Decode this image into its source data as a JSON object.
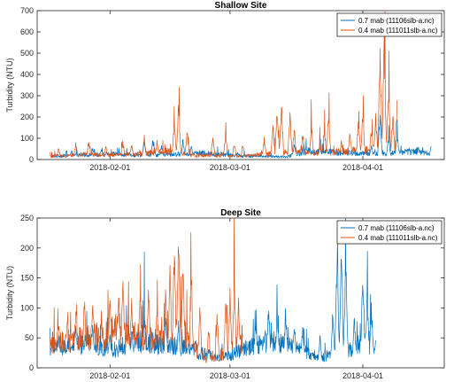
{
  "chart_data": [
    {
      "type": "line",
      "title": "Shallow Site",
      "xlabel": "",
      "ylabel": "Turbidity (NTU)",
      "x_range": [
        "2018-01-15",
        "2018-04-20"
      ],
      "ylim": [
        0,
        700
      ],
      "yticks": [
        0,
        100,
        200,
        300,
        400,
        500,
        600,
        700
      ],
      "xticks": [
        "2018-02-01",
        "2018-03-01",
        "2018-04-01"
      ],
      "grid": false,
      "legend_location": "top-right",
      "series": [
        {
          "name": "0.7 mab (11106slb-a.nc)",
          "color": "#0072BD",
          "start": "2018-01-18",
          "end": "2018-04-17",
          "baseline": [
            [
              0,
              15
            ],
            [
              8,
              22
            ],
            [
              15,
              25
            ],
            [
              20,
              20
            ],
            [
              30,
              25
            ],
            [
              35,
              30
            ],
            [
              45,
              18
            ],
            [
              55,
              12
            ],
            [
              60,
              40
            ],
            [
              70,
              30
            ],
            [
              78,
              25
            ],
            [
              85,
              40
            ],
            [
              90,
              20
            ]
          ],
          "spikes": [
            [
              5,
              50
            ],
            [
              10,
              60
            ],
            [
              12,
              55
            ],
            [
              22,
              110
            ],
            [
              24,
              100
            ],
            [
              26,
              80
            ],
            [
              31,
              105
            ],
            [
              33,
              70
            ],
            [
              40,
              40
            ],
            [
              57,
              85
            ],
            [
              63,
              70
            ],
            [
              66,
              60
            ],
            [
              75,
              80
            ],
            [
              77,
              235
            ],
            [
              79,
              120
            ],
            [
              81,
              140
            ],
            [
              83,
              60
            ],
            [
              86,
              65
            ],
            [
              89,
              90
            ]
          ]
        },
        {
          "name": "0.4 mab (111011slb-a.nc)",
          "color": "#D95319",
          "start": "2018-01-18",
          "end": "2018-04-09",
          "baseline": [
            [
              0,
              15
            ],
            [
              8,
              25
            ],
            [
              15,
              20
            ],
            [
              20,
              25
            ],
            [
              28,
              40
            ],
            [
              33,
              20
            ],
            [
              45,
              15
            ],
            [
              55,
              35
            ],
            [
              62,
              30
            ],
            [
              70,
              40
            ],
            [
              76,
              50
            ],
            [
              81,
              60
            ]
          ],
          "spikes": [
            [
              2,
              60
            ],
            [
              6,
              90
            ],
            [
              9,
              95
            ],
            [
              13,
              70
            ],
            [
              17,
              95
            ],
            [
              19,
              85
            ],
            [
              22,
              120
            ],
            [
              25,
              100
            ],
            [
              29,
              195
            ],
            [
              30,
              295
            ],
            [
              32,
              150
            ],
            [
              38,
              120
            ],
            [
              41,
              140
            ],
            [
              43,
              90
            ],
            [
              45,
              80
            ],
            [
              50,
              110
            ],
            [
              52,
              170
            ],
            [
              53,
              260
            ],
            [
              54,
              285
            ],
            [
              56,
              230
            ],
            [
              57,
              160
            ],
            [
              59,
              140
            ],
            [
              61,
              180
            ],
            [
              63,
              95
            ],
            [
              64,
              170
            ],
            [
              65,
              250
            ],
            [
              68,
              95
            ],
            [
              70,
              150
            ],
            [
              72,
              205
            ],
            [
              73,
              240
            ],
            [
              75,
              165
            ],
            [
              76,
              230
            ],
            [
              77,
              580
            ],
            [
              78,
              600
            ],
            [
              79,
              380
            ],
            [
              80,
              230
            ],
            [
              81,
              310
            ]
          ]
        }
      ]
    },
    {
      "type": "line",
      "title": "Deep Site",
      "xlabel": "",
      "ylabel": "Turbidity (NTU)",
      "x_range": [
        "2018-01-15",
        "2018-04-20"
      ],
      "ylim": [
        0,
        250
      ],
      "yticks": [
        0,
        50,
        100,
        150,
        200,
        250
      ],
      "xticks": [
        "2018-02-01",
        "2018-03-01",
        "2018-04-01"
      ],
      "grid": false,
      "legend_location": "top-right",
      "series": [
        {
          "name": "0.7 mab (11106slb-a.nc)",
          "color": "#0072BD",
          "start": "2018-01-18",
          "end": "2018-04-04",
          "baseline": [
            [
              0,
              30
            ],
            [
              5,
              35
            ],
            [
              10,
              40
            ],
            [
              15,
              30
            ],
            [
              20,
              45
            ],
            [
              25,
              40
            ],
            [
              30,
              35
            ],
            [
              35,
              25
            ],
            [
              40,
              15
            ],
            [
              45,
              30
            ],
            [
              50,
              45
            ],
            [
              55,
              40
            ],
            [
              60,
              25
            ],
            [
              62,
              15
            ],
            [
              65,
              20
            ],
            [
              70,
              30
            ],
            [
              73,
              45
            ],
            [
              76,
              20
            ]
          ],
          "spikes": [
            [
              2,
              60
            ],
            [
              6,
              80
            ],
            [
              10,
              85
            ],
            [
              14,
              60
            ],
            [
              18,
              90
            ],
            [
              22,
              110
            ],
            [
              27,
              95
            ],
            [
              30,
              80
            ],
            [
              34,
              60
            ],
            [
              40,
              40
            ],
            [
              48,
              90
            ],
            [
              51,
              120
            ],
            [
              53,
              95
            ],
            [
              55,
              110
            ],
            [
              57,
              90
            ],
            [
              59,
              80
            ],
            [
              63,
              60
            ],
            [
              66,
              110
            ],
            [
              67,
              210
            ],
            [
              68,
              220
            ],
            [
              69,
              205
            ],
            [
              71,
              90
            ],
            [
              73,
              185
            ],
            [
              74,
              150
            ],
            [
              75,
              120
            ],
            [
              76,
              50
            ]
          ]
        },
        {
          "name": "0.4 mab (111011slb-a.nc)",
          "color": "#D95319",
          "start": "2018-01-18",
          "end": "2018-03-04",
          "baseline": [
            [
              0,
              40
            ],
            [
              5,
              45
            ],
            [
              10,
              50
            ],
            [
              15,
              60
            ],
            [
              20,
              55
            ],
            [
              25,
              45
            ],
            [
              28,
              60
            ],
            [
              30,
              70
            ],
            [
              33,
              40
            ],
            [
              36,
              15
            ],
            [
              40,
              20
            ],
            [
              44,
              40
            ]
          ],
          "spikes": [
            [
              2,
              85
            ],
            [
              4,
              100
            ],
            [
              6,
              120
            ],
            [
              8,
              135
            ],
            [
              10,
              130
            ],
            [
              12,
              95
            ],
            [
              14,
              130
            ],
            [
              16,
              135
            ],
            [
              17,
              170
            ],
            [
              19,
              130
            ],
            [
              21,
              125
            ],
            [
              23,
              145
            ],
            [
              25,
              110
            ],
            [
              27,
              140
            ],
            [
              28,
              185
            ],
            [
              29,
              225
            ],
            [
              30,
              238
            ],
            [
              31,
              205
            ],
            [
              33,
              165
            ],
            [
              35,
              110
            ],
            [
              37,
              75
            ],
            [
              39,
              100
            ],
            [
              41,
              125
            ],
            [
              42,
              140
            ],
            [
              43,
              160
            ],
            [
              44,
              130
            ]
          ]
        }
      ]
    }
  ]
}
